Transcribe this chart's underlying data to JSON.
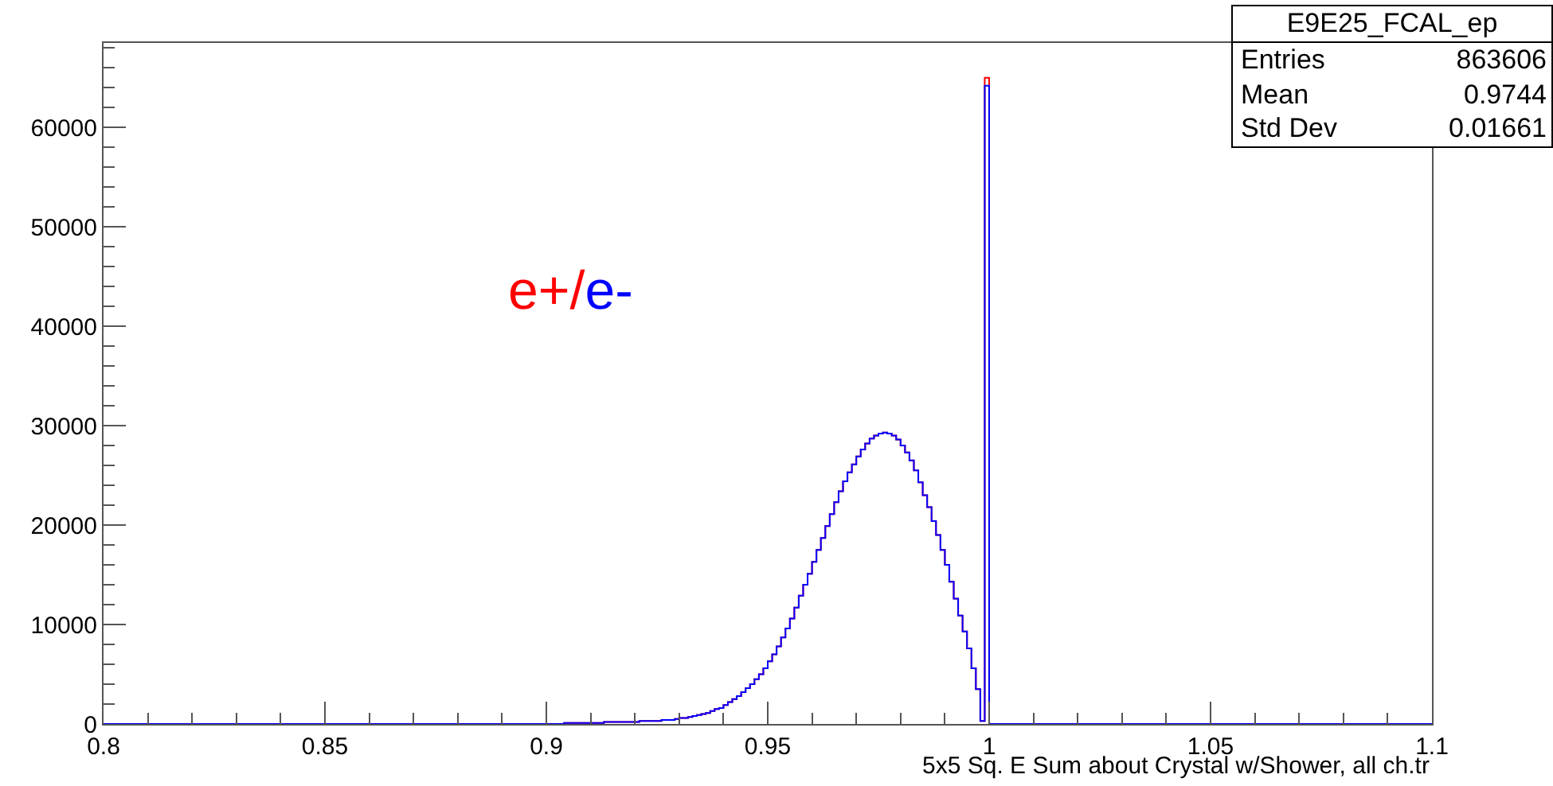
{
  "chart_data": {
    "type": "histogram",
    "xlabel": "5x5 Sq. E Sum about Crystal w/Shower, all ch.tr",
    "bins": [
      0.8,
      0.88,
      0.881,
      0.882,
      0.883,
      0.884,
      0.885,
      0.886,
      0.887,
      0.888,
      0.889,
      0.89,
      0.891,
      0.892,
      0.893,
      0.894,
      0.895,
      0.896,
      0.897,
      0.898,
      0.899,
      0.9,
      0.901,
      0.902,
      0.903,
      0.904,
      0.905,
      0.906,
      0.907,
      0.908,
      0.909,
      0.91,
      0.911,
      0.912,
      0.913,
      0.914,
      0.915,
      0.916,
      0.917,
      0.918,
      0.919,
      0.92,
      0.921,
      0.922,
      0.923,
      0.924,
      0.925,
      0.926,
      0.927,
      0.928,
      0.929,
      0.93,
      0.931,
      0.932,
      0.933,
      0.934,
      0.935,
      0.936,
      0.937,
      0.938,
      0.939,
      0.94,
      0.941,
      0.942,
      0.943,
      0.944,
      0.945,
      0.946,
      0.947,
      0.948,
      0.949,
      0.95,
      0.951,
      0.952,
      0.953,
      0.954,
      0.955,
      0.956,
      0.957,
      0.958,
      0.959,
      0.96,
      0.961,
      0.962,
      0.963,
      0.964,
      0.965,
      0.966,
      0.967,
      0.968,
      0.969,
      0.97,
      0.971,
      0.972,
      0.973,
      0.974,
      0.975,
      0.976,
      0.977,
      0.978,
      0.979,
      0.98,
      0.981,
      0.982,
      0.983,
      0.984,
      0.985,
      0.986,
      0.987,
      0.988,
      0.989,
      0.99,
      0.991,
      0.992,
      0.993,
      0.994,
      0.995,
      0.996,
      0.997,
      0.998,
      0.999,
      1.0,
      1.1
    ],
    "series": [
      {
        "color": "#ff0000",
        "values": [
          0,
          0,
          0,
          0,
          0,
          0,
          0,
          0,
          0,
          0,
          0,
          0,
          0,
          0,
          0,
          0,
          0,
          0,
          0,
          0,
          0,
          0,
          0,
          0,
          0,
          100,
          100,
          100,
          100,
          100,
          100,
          100,
          100,
          100,
          200,
          200,
          200,
          200,
          200,
          200,
          200,
          200,
          300,
          300,
          300,
          300,
          300,
          400,
          400,
          400,
          500,
          600,
          600,
          700,
          800,
          900,
          1000,
          1100,
          1300,
          1500,
          1600,
          1900,
          2200,
          2500,
          2800,
          3200,
          3600,
          4000,
          4500,
          5000,
          5600,
          6300,
          7000,
          7800,
          8700,
          9600,
          10600,
          11700,
          12900,
          14000,
          15100,
          16300,
          17500,
          18700,
          19900,
          21100,
          22300,
          23400,
          24400,
          25300,
          26100,
          26900,
          27600,
          28200,
          28700,
          29000,
          29200,
          29300,
          29200,
          29000,
          28600,
          28000,
          27300,
          26500,
          25500,
          24300,
          23000,
          21800,
          20400,
          19000,
          17500,
          16000,
          14300,
          12600,
          10900,
          9300,
          7600,
          5600,
          3500,
          300,
          65000,
          0
        ]
      },
      {
        "color": "#0000ff",
        "values": [
          0,
          0,
          0,
          0,
          0,
          0,
          0,
          0,
          0,
          0,
          0,
          0,
          0,
          0,
          0,
          0,
          0,
          0,
          0,
          0,
          0,
          0,
          0,
          0,
          0,
          100,
          100,
          100,
          100,
          100,
          100,
          100,
          100,
          100,
          200,
          200,
          200,
          200,
          200,
          200,
          200,
          200,
          300,
          300,
          300,
          300,
          300,
          400,
          400,
          400,
          500,
          600,
          600,
          700,
          800,
          900,
          1000,
          1100,
          1300,
          1500,
          1600,
          1900,
          2200,
          2500,
          2800,
          3200,
          3600,
          4000,
          4500,
          5000,
          5600,
          6300,
          7000,
          7800,
          8700,
          9600,
          10600,
          11700,
          12900,
          14000,
          15100,
          16300,
          17500,
          18700,
          19900,
          21100,
          22300,
          23400,
          24400,
          25300,
          26100,
          26900,
          27600,
          28200,
          28700,
          29000,
          29200,
          29300,
          29200,
          29000,
          28600,
          28000,
          27300,
          26500,
          25500,
          24300,
          23000,
          21800,
          20400,
          19000,
          17500,
          16000,
          14300,
          12600,
          10900,
          9300,
          7600,
          5600,
          3500,
          300,
          64200,
          0
        ]
      }
    ],
    "xlim": [
      0.8,
      1.1
    ],
    "xticks": [
      0.8,
      0.85,
      0.9,
      0.95,
      1,
      1.05,
      1.1
    ],
    "ylim": [
      0,
      68500
    ],
    "yticks": [
      0,
      10000,
      20000,
      30000,
      40000,
      50000,
      60000
    ],
    "grid": false,
    "annotations": [
      "e+/",
      "e-",
      "E9E25_FCAL_ep",
      "Entries",
      "863606",
      "Mean",
      "0.9744",
      "Std Dev",
      "0.01661"
    ]
  }
}
